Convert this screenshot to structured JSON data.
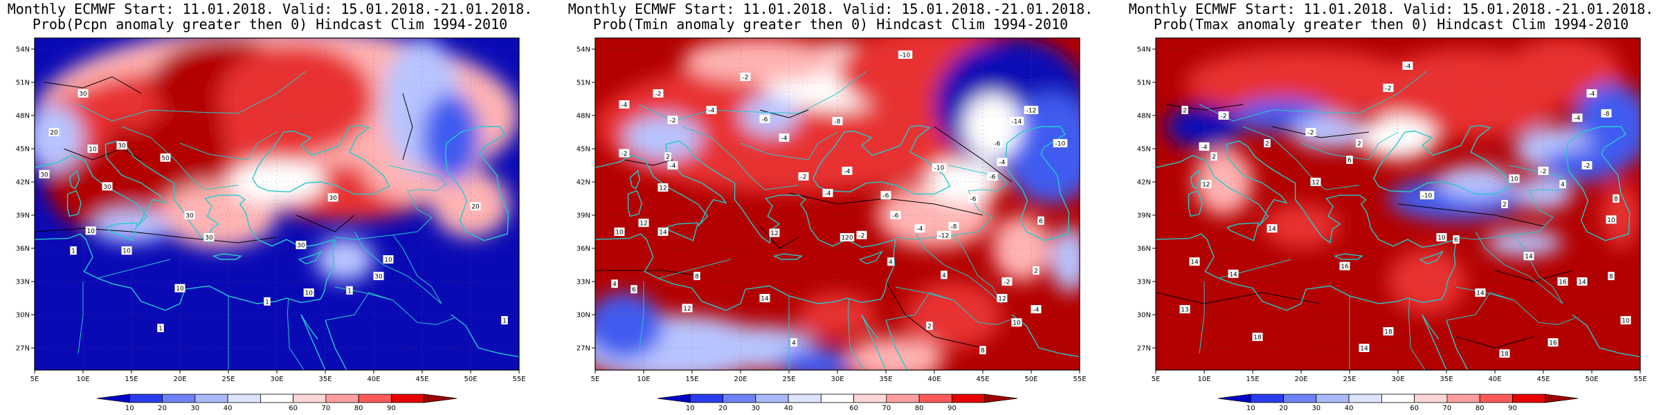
{
  "panels": [
    {
      "title1": "Monthly ECMWF Start: 11.01.2018. Valid: 15.01.2018.-21.01.2018.",
      "title2": "Prob(Pcpn anomaly greater then 0) Hindcast Clim 1994-2010",
      "contour_labels": [
        {
          "text": "30",
          "lon": 10.0,
          "lat": 50.0
        },
        {
          "text": "20",
          "lon": 7.0,
          "lat": 46.5
        },
        {
          "text": "10",
          "lon": 11.0,
          "lat": 45.0
        },
        {
          "text": "30",
          "lon": 14.0,
          "lat": 45.3
        },
        {
          "text": "30",
          "lon": 6.0,
          "lat": 42.7
        },
        {
          "text": "50",
          "lon": 18.5,
          "lat": 44.2
        },
        {
          "text": "30",
          "lon": 12.5,
          "lat": 41.6
        },
        {
          "text": "30",
          "lon": 21.0,
          "lat": 39.0
        },
        {
          "text": "30",
          "lon": 23.0,
          "lat": 37.0
        },
        {
          "text": "10",
          "lon": 10.8,
          "lat": 37.6
        },
        {
          "text": "1",
          "lon": 9.0,
          "lat": 35.8
        },
        {
          "text": "10",
          "lon": 14.5,
          "lat": 35.8
        },
        {
          "text": "30",
          "lon": 32.5,
          "lat": 36.3
        },
        {
          "text": "30",
          "lon": 35.8,
          "lat": 40.6
        },
        {
          "text": "30",
          "lon": 40.5,
          "lat": 33.5
        },
        {
          "text": "10",
          "lon": 20.0,
          "lat": 32.4
        },
        {
          "text": "1",
          "lon": 29.0,
          "lat": 31.2
        },
        {
          "text": "10",
          "lon": 33.3,
          "lat": 32.0
        },
        {
          "text": "1",
          "lon": 18.0,
          "lat": 28.8
        },
        {
          "text": "10",
          "lon": 41.5,
          "lat": 35.0
        },
        {
          "text": "1",
          "lon": 37.5,
          "lat": 32.2
        },
        {
          "text": "20",
          "lon": 50.5,
          "lat": 39.8
        },
        {
          "text": "1",
          "lon": 53.5,
          "lat": 29.5
        }
      ]
    },
    {
      "title1": "Monthly ECMWF Start: 11.01.2018. Valid: 15.01.2018.-21.01.2018.",
      "title2": "Prob(Tmin anomaly greater then 0) Hindcast Clim 1994-2010",
      "contour_labels": [
        {
          "text": "-10",
          "lon": 37.0,
          "lat": 53.5
        },
        {
          "text": "-2",
          "lon": 20.5,
          "lat": 51.5
        },
        {
          "text": "-2",
          "lon": 11.5,
          "lat": 50.0
        },
        {
          "text": "-4",
          "lon": 8.0,
          "lat": 49.0
        },
        {
          "text": "-4",
          "lon": 17.0,
          "lat": 48.5
        },
        {
          "text": "-6",
          "lon": 22.5,
          "lat": 47.7
        },
        {
          "text": "-2",
          "lon": 13.0,
          "lat": 47.6
        },
        {
          "text": "-8",
          "lon": 30.0,
          "lat": 47.5
        },
        {
          "text": "-4",
          "lon": 24.5,
          "lat": 46.0
        },
        {
          "text": "-2",
          "lon": 8.0,
          "lat": 44.6
        },
        {
          "text": "2",
          "lon": 12.5,
          "lat": 44.3
        },
        {
          "text": "-4",
          "lon": 13.0,
          "lat": 43.5
        },
        {
          "text": "12",
          "lon": 12.0,
          "lat": 41.5
        },
        {
          "text": "-2",
          "lon": 26.5,
          "lat": 42.5
        },
        {
          "text": "-4",
          "lon": 31.0,
          "lat": 43.0
        },
        {
          "text": "-6",
          "lon": 35.0,
          "lat": 40.8
        },
        {
          "text": "-10",
          "lon": 40.5,
          "lat": 43.3
        },
        {
          "text": "-6",
          "lon": 44.0,
          "lat": 40.5
        },
        {
          "text": "-8",
          "lon": 42.0,
          "lat": 38.0
        },
        {
          "text": "-12",
          "lon": 41.0,
          "lat": 37.2
        },
        {
          "text": "-4",
          "lon": 38.5,
          "lat": 37.8
        },
        {
          "text": "-6",
          "lon": 36.0,
          "lat": 39.0
        },
        {
          "text": "-4",
          "lon": 29.0,
          "lat": 41.0
        },
        {
          "text": "14",
          "lon": 12.0,
          "lat": 37.5
        },
        {
          "text": "12",
          "lon": 10.0,
          "lat": 38.3
        },
        {
          "text": "10",
          "lon": 7.5,
          "lat": 37.5
        },
        {
          "text": "12",
          "lon": 23.5,
          "lat": 37.4
        },
        {
          "text": "120",
          "lon": 31.0,
          "lat": 37.0
        },
        {
          "text": "-2",
          "lon": 32.5,
          "lat": 37.2
        },
        {
          "text": "4",
          "lon": 35.5,
          "lat": 34.8
        },
        {
          "text": "8",
          "lon": 15.5,
          "lat": 33.5
        },
        {
          "text": "12",
          "lon": 14.5,
          "lat": 30.6
        },
        {
          "text": "14",
          "lon": 22.5,
          "lat": 31.5
        },
        {
          "text": "6",
          "lon": 9.0,
          "lat": 32.3
        },
        {
          "text": "4",
          "lon": 7.0,
          "lat": 32.8
        },
        {
          "text": "4",
          "lon": 41.0,
          "lat": 33.6
        },
        {
          "text": "2",
          "lon": 39.5,
          "lat": 29.0
        },
        {
          "text": "4",
          "lon": 25.5,
          "lat": 27.5
        },
        {
          "text": "8",
          "lon": 45.0,
          "lat": 26.8
        },
        {
          "text": "-2",
          "lon": 47.5,
          "lat": 33.0
        },
        {
          "text": "-4",
          "lon": 50.5,
          "lat": 30.5
        },
        {
          "text": "12",
          "lon": 47.0,
          "lat": 31.5
        },
        {
          "text": "10",
          "lon": 48.5,
          "lat": 29.3
        },
        {
          "text": "6",
          "lon": 51.0,
          "lat": 38.5
        },
        {
          "text": "-6",
          "lon": 46.0,
          "lat": 42.5
        },
        {
          "text": "-4",
          "lon": 47.0,
          "lat": 43.8
        },
        {
          "text": "-12",
          "lon": 50.0,
          "lat": 48.5
        },
        {
          "text": "-14",
          "lon": 48.5,
          "lat": 47.5
        },
        {
          "text": "-10",
          "lon": 53.0,
          "lat": 45.5
        },
        {
          "text": "-6",
          "lon": 46.5,
          "lat": 45.5
        },
        {
          "text": "2",
          "lon": 50.5,
          "lat": 34.0
        }
      ]
    },
    {
      "title1": "Monthly ECMWF Start: 11.01.2018. Valid: 15.01.2018.-21.01.2018.",
      "title2": "Prob(Tmax anomaly greater then 0) Hindcast Clim 1994-2010",
      "contour_labels": [
        {
          "text": "-4",
          "lon": 31.0,
          "lat": 52.5
        },
        {
          "text": "-2",
          "lon": 29.0,
          "lat": 50.5
        },
        {
          "text": "-4",
          "lon": 50.0,
          "lat": 50.0
        },
        {
          "text": "-4",
          "lon": 48.5,
          "lat": 47.8
        },
        {
          "text": "-8",
          "lon": 51.5,
          "lat": 48.2
        },
        {
          "text": "-2",
          "lon": 12.0,
          "lat": 48.0
        },
        {
          "text": "2",
          "lon": 8.0,
          "lat": 48.5
        },
        {
          "text": "-4",
          "lon": 10.0,
          "lat": 45.2
        },
        {
          "text": "2",
          "lon": 11.0,
          "lat": 44.3
        },
        {
          "text": "12",
          "lon": 10.2,
          "lat": 41.8
        },
        {
          "text": "2",
          "lon": 16.5,
          "lat": 45.5
        },
        {
          "text": "2",
          "lon": 26.0,
          "lat": 45.5
        },
        {
          "text": "-2",
          "lon": 21.0,
          "lat": 46.5
        },
        {
          "text": "12",
          "lon": 21.5,
          "lat": 42.0
        },
        {
          "text": "6",
          "lon": 25.0,
          "lat": 44.0
        },
        {
          "text": "10",
          "lon": 42.0,
          "lat": 42.3
        },
        {
          "text": "-10",
          "lon": 33.0,
          "lat": 40.8
        },
        {
          "text": "-2",
          "lon": 45.0,
          "lat": 43.0
        },
        {
          "text": "-2",
          "lon": 49.5,
          "lat": 43.5
        },
        {
          "text": "14",
          "lon": 17.0,
          "lat": 37.8
        },
        {
          "text": "14",
          "lon": 9.0,
          "lat": 34.8
        },
        {
          "text": "14",
          "lon": 13.0,
          "lat": 33.7
        },
        {
          "text": "13",
          "lon": 8.0,
          "lat": 30.5
        },
        {
          "text": "16",
          "lon": 24.5,
          "lat": 34.4
        },
        {
          "text": "10",
          "lon": 34.5,
          "lat": 37.0
        },
        {
          "text": "6",
          "lon": 36.0,
          "lat": 36.8
        },
        {
          "text": "14",
          "lon": 43.5,
          "lat": 35.3
        },
        {
          "text": "16",
          "lon": 47.0,
          "lat": 33.0
        },
        {
          "text": "14",
          "lon": 49.0,
          "lat": 33.0
        },
        {
          "text": "8",
          "lon": 52.0,
          "lat": 33.5
        },
        {
          "text": "8",
          "lon": 52.5,
          "lat": 40.5
        },
        {
          "text": "10",
          "lon": 52.0,
          "lat": 38.6
        },
        {
          "text": "14",
          "lon": 38.5,
          "lat": 32.0
        },
        {
          "text": "18",
          "lon": 15.5,
          "lat": 28.0
        },
        {
          "text": "18",
          "lon": 29.0,
          "lat": 28.5
        },
        {
          "text": "14",
          "lon": 26.5,
          "lat": 27.0
        },
        {
          "text": "16",
          "lon": 46.0,
          "lat": 27.5
        },
        {
          "text": "18",
          "lon": 41.0,
          "lat": 26.5
        },
        {
          "text": "10",
          "lon": 53.5,
          "lat": 29.5
        },
        {
          "text": "2",
          "lon": 41.0,
          "lat": 40.0
        },
        {
          "text": "4",
          "lon": 47.0,
          "lat": 41.8
        }
      ]
    }
  ],
  "map": {
    "lon_min": 5,
    "lon_max": 55,
    "lat_min": 25,
    "lat_max": 55,
    "x_ticks": [
      "5E",
      "10E",
      "15E",
      "20E",
      "25E",
      "30E",
      "35E",
      "40E",
      "45E",
      "50E",
      "55E"
    ],
    "x_tick_values": [
      5,
      10,
      15,
      20,
      25,
      30,
      35,
      40,
      45,
      50,
      55
    ],
    "y_ticks": [
      "27N",
      "30N",
      "33N",
      "36N",
      "39N",
      "42N",
      "45N",
      "48N",
      "51N",
      "54N"
    ],
    "y_tick_values": [
      27,
      30,
      33,
      36,
      39,
      42,
      45,
      48,
      51,
      54
    ]
  },
  "colorbar": {
    "labels": [
      "10",
      "20",
      "30",
      "40",
      "60",
      "70",
      "80",
      "90"
    ],
    "colors": [
      "#0000c8",
      "#2a3cf0",
      "#6e82f5",
      "#aab9fa",
      "#dde4fd",
      "#ffffff",
      "#ffd6d6",
      "#ff9e9e",
      "#ff5a5a",
      "#e60000",
      "#a00000"
    ]
  },
  "colors": {
    "coast": "#22cccc",
    "contour": "#000000",
    "frame": "#000000",
    "grid": "#666666",
    "prob_high": "#b30000",
    "prob_mid_high": "#e83030",
    "prob_low_high": "#ffb3b3",
    "neutral": "#ffffff",
    "prob_low_low": "#b8c4ff",
    "prob_mid_low": "#3f5cf0",
    "prob_low": "#0a0ab5"
  }
}
